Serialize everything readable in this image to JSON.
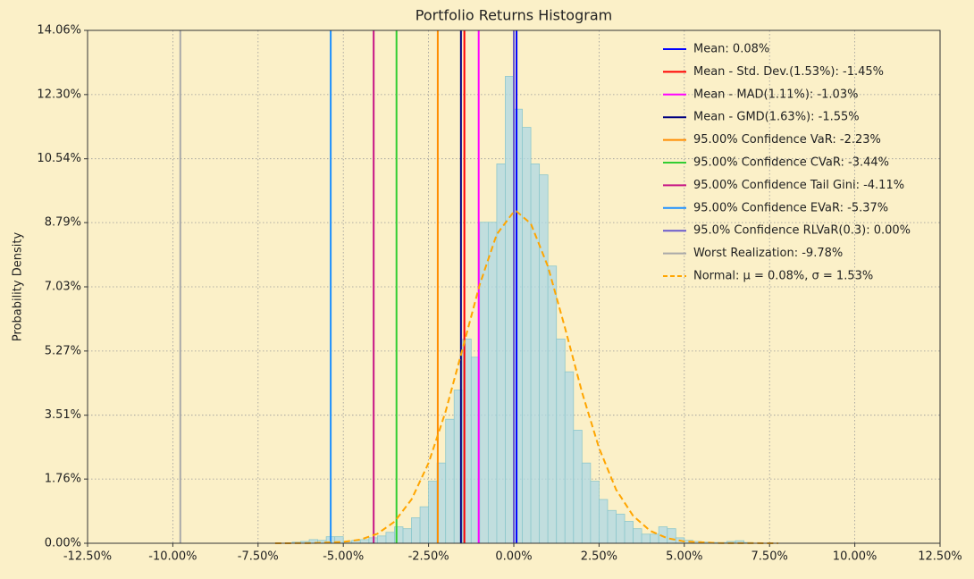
{
  "chart_data": {
    "type": "histogram",
    "title": "Portfolio Returns Histogram",
    "ylabel": "Probability Density",
    "bins": [
      -6.5,
      -6.25,
      -6.0,
      -5.75,
      -5.5,
      -5.25,
      -5.0,
      -4.75,
      -4.5,
      -4.25,
      -4.0,
      -3.75,
      -3.5,
      -3.25,
      -3.0,
      -2.75,
      -2.5,
      -2.25,
      -2.0,
      -1.75,
      -1.5,
      -1.25,
      -1.0,
      -0.75,
      -0.5,
      -0.25,
      0.0,
      0.25,
      0.5,
      0.75,
      1.0,
      1.25,
      1.5,
      1.75,
      2.0,
      2.25,
      2.5,
      2.75,
      3.0,
      3.25,
      3.5,
      3.75,
      4.0,
      4.25,
      4.5,
      4.75,
      5.0,
      5.25,
      5.5,
      5.75,
      6.0,
      6.25,
      6.5,
      6.75,
      7.0
    ],
    "values": [
      0.03,
      0.05,
      0.1,
      0.08,
      0.18,
      0.18,
      0.05,
      0.08,
      0.1,
      0.15,
      0.2,
      0.3,
      0.45,
      0.4,
      0.7,
      1.0,
      1.7,
      2.2,
      3.4,
      4.2,
      5.6,
      5.1,
      8.8,
      8.8,
      10.4,
      12.8,
      11.9,
      11.4,
      10.4,
      10.1,
      7.6,
      5.6,
      4.7,
      3.1,
      2.2,
      1.7,
      1.2,
      0.9,
      0.8,
      0.6,
      0.4,
      0.25,
      0.25,
      0.45,
      0.4,
      0.15,
      0.08,
      0.05,
      0.03,
      0.02,
      0.02,
      0.05,
      0.07,
      0.02
    ],
    "color": "#add8e6",
    "xlim": [
      -12.5,
      12.5
    ],
    "ylim": [
      0,
      14.06
    ],
    "xticks": [
      {
        "value": -12.5,
        "label": "-12.50%"
      },
      {
        "value": -10,
        "label": "-10.00%"
      },
      {
        "value": -7.5,
        "label": "-7.50%"
      },
      {
        "value": -5,
        "label": "-5.00%"
      },
      {
        "value": -2.5,
        "label": "-2.50%"
      },
      {
        "value": 0,
        "label": "0.00%"
      },
      {
        "value": 2.5,
        "label": "2.50%"
      },
      {
        "value": 5,
        "label": "5.00%"
      },
      {
        "value": 7.5,
        "label": "7.50%"
      },
      {
        "value": 10,
        "label": "10.00%"
      },
      {
        "value": 12.5,
        "label": "12.50%"
      }
    ],
    "yticks": [
      {
        "value": 0,
        "label": "0.00%"
      },
      {
        "value": 1.76,
        "label": "1.76%"
      },
      {
        "value": 3.51,
        "label": "3.51%"
      },
      {
        "value": 5.27,
        "label": "5.27%"
      },
      {
        "value": 7.03,
        "label": "7.03%"
      },
      {
        "value": 8.79,
        "label": "8.79%"
      },
      {
        "value": 10.54,
        "label": "10.54%"
      },
      {
        "value": 12.3,
        "label": "12.30%"
      },
      {
        "value": 14.06,
        "label": "14.06%"
      }
    ],
    "grid": true,
    "legend": "upper right",
    "lines": [
      {
        "name": "Mean: 0.08%",
        "color": "#0000ff",
        "x": 0.08
      },
      {
        "name": "Mean - Std. Dev.(1.53%): -1.45%",
        "color": "#ff0000",
        "x": -1.45
      },
      {
        "name": "Mean - MAD(1.11%): -1.03%",
        "color": "#ff00ff",
        "x": -1.03
      },
      {
        "name": "Mean - GMD(1.63%): -1.55%",
        "color": "#000080",
        "x": -1.55
      },
      {
        "name": "95.00% Confidence VaR: -2.23%",
        "color": "#ff8c00",
        "x": -2.23
      },
      {
        "name": "95.00% Confidence CVaR: -3.44%",
        "color": "#32cd32",
        "x": -3.44
      },
      {
        "name": "95.00% Confidence Tail Gini: -4.11%",
        "color": "#c71585",
        "x": -4.11
      },
      {
        "name": "95.00% Confidence EVaR: -5.37%",
        "color": "#1e90ff",
        "x": -5.37
      },
      {
        "name": "95.0% Confidence RLVaR(0.3): 0.00%",
        "color": "#6a5acd",
        "x": 0.0
      },
      {
        "name": "Worst Realization: -9.78%",
        "color": "#a9a9a9",
        "x": -9.78
      }
    ],
    "curve": {
      "name": "Normal: μ = 0.08%, σ = 1.53%",
      "color": "#ffa500",
      "style": "dashed",
      "x": [
        -7,
        -6,
        -5,
        -4.5,
        -4,
        -3.5,
        -3,
        -2.5,
        -2,
        -1.5,
        -1,
        -0.5,
        0,
        0.08,
        0.5,
        1,
        1.5,
        2,
        2.5,
        3,
        3.5,
        4,
        4.5,
        5,
        6,
        7.75
      ],
      "y": [
        0,
        0.003,
        0.037,
        0.1,
        0.26,
        0.59,
        1.2,
        2.2,
        3.61,
        5.34,
        7.09,
        8.47,
        9.09,
        9.1,
        8.76,
        7.59,
        5.91,
        4.14,
        2.61,
        1.47,
        0.75,
        0.34,
        0.14,
        0.05,
        0.005,
        0
      ]
    }
  }
}
